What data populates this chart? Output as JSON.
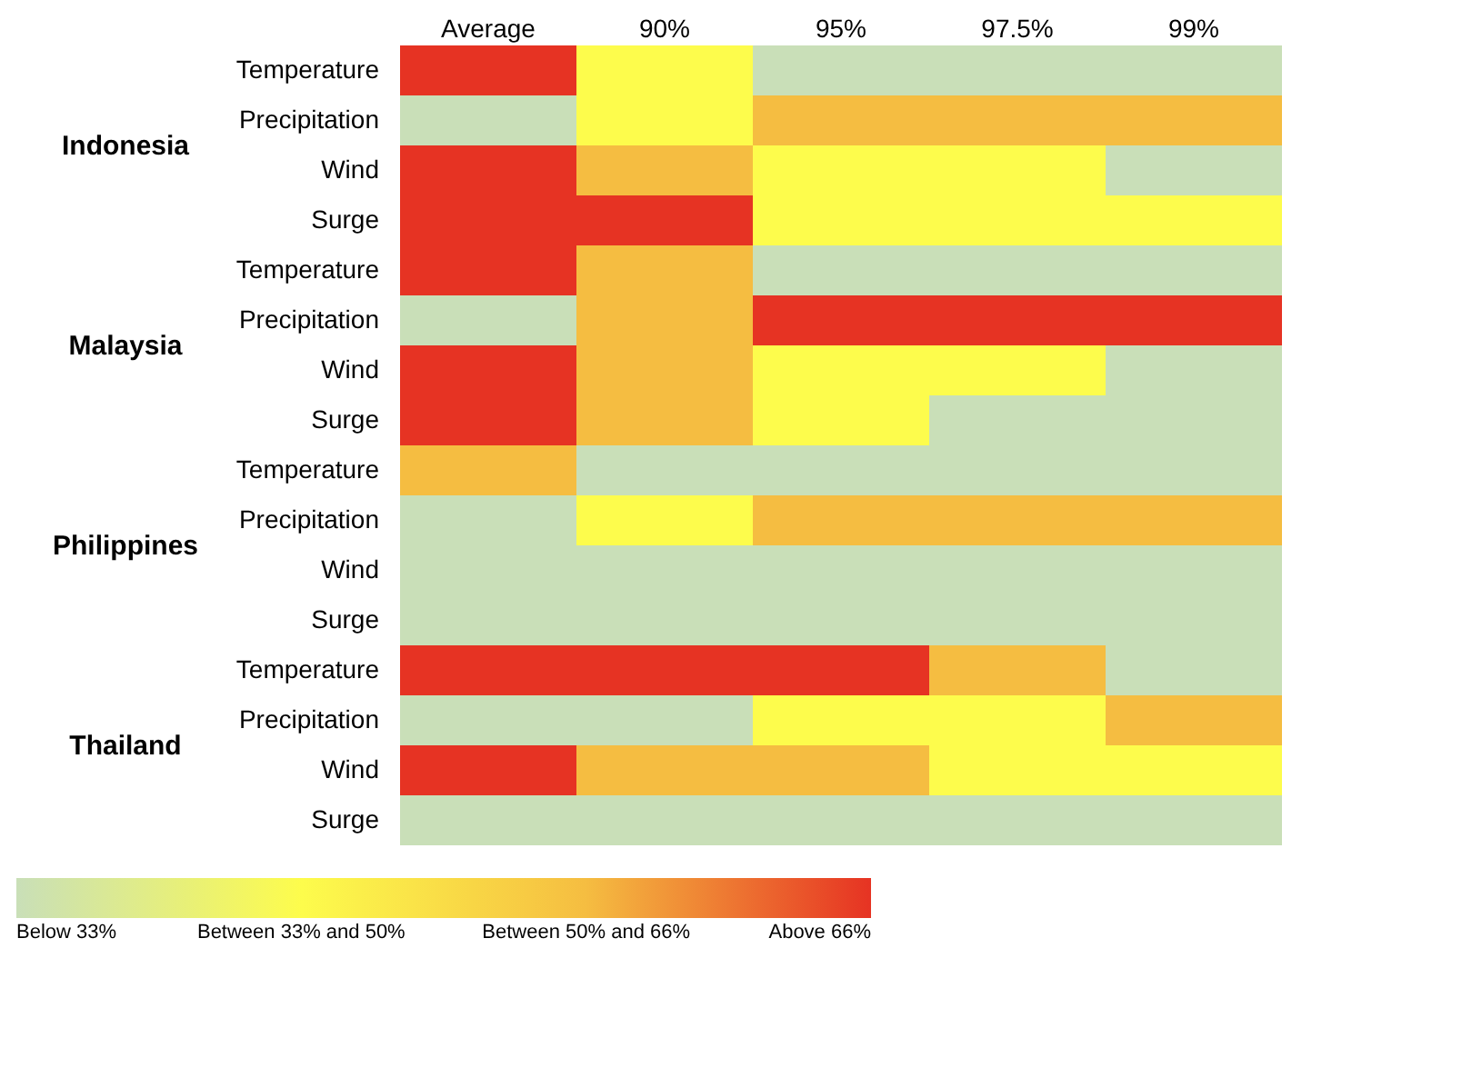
{
  "chart_data": {
    "type": "heatmap",
    "categories": [
      "Average",
      "90%",
      "95%",
      "97.5%",
      "99%"
    ],
    "y_categories": [
      "Temperature",
      "Precipitation",
      "Wind",
      "Surge",
      "Temperature",
      "Precipitation",
      "Wind",
      "Surge",
      "Temperature",
      "Precipitation",
      "Wind",
      "Surge",
      "Temperature",
      "Precipitation",
      "Wind",
      "Surge"
    ],
    "y2_categories": [
      null,
      "Indonesia",
      null,
      null,
      null,
      "Malaysia",
      null,
      null,
      null,
      "Philippines",
      null,
      null,
      null,
      "Thailand",
      null,
      null
    ],
    "clim": [
      0,
      3
    ],
    "cticks": [
      {
        "value": 0,
        "label": "Below 33%"
      },
      {
        "value": 1,
        "label": "Between 33% and 50%"
      },
      {
        "value": 2,
        "label": "Between 50% and 66%"
      },
      {
        "value": 3,
        "label": "Above 66%"
      }
    ],
    "colors": [
      "#c9dfb8",
      "#fdfc4c",
      "#f5bd41",
      "#e63323"
    ],
    "cells": [
      [
        3,
        1,
        0,
        0,
        0
      ],
      [
        0,
        1,
        2,
        2,
        2
      ],
      [
        3,
        2,
        1,
        1,
        0
      ],
      [
        3,
        3,
        1,
        1,
        1
      ],
      [
        3,
        2,
        0,
        0,
        0
      ],
      [
        0,
        2,
        3,
        3,
        3
      ],
      [
        3,
        2,
        1,
        1,
        0
      ],
      [
        3,
        2,
        1,
        0,
        0
      ],
      [
        2,
        0,
        0,
        0,
        0
      ],
      [
        0,
        1,
        2,
        2,
        2
      ],
      [
        0,
        0,
        0,
        0,
        0
      ],
      [
        0,
        0,
        0,
        0,
        0
      ],
      [
        3,
        3,
        3,
        2,
        0
      ],
      [
        0,
        0,
        1,
        1,
        2
      ],
      [
        3,
        2,
        2,
        1,
        1
      ],
      [
        0,
        0,
        0,
        0,
        0
      ]
    ]
  }
}
